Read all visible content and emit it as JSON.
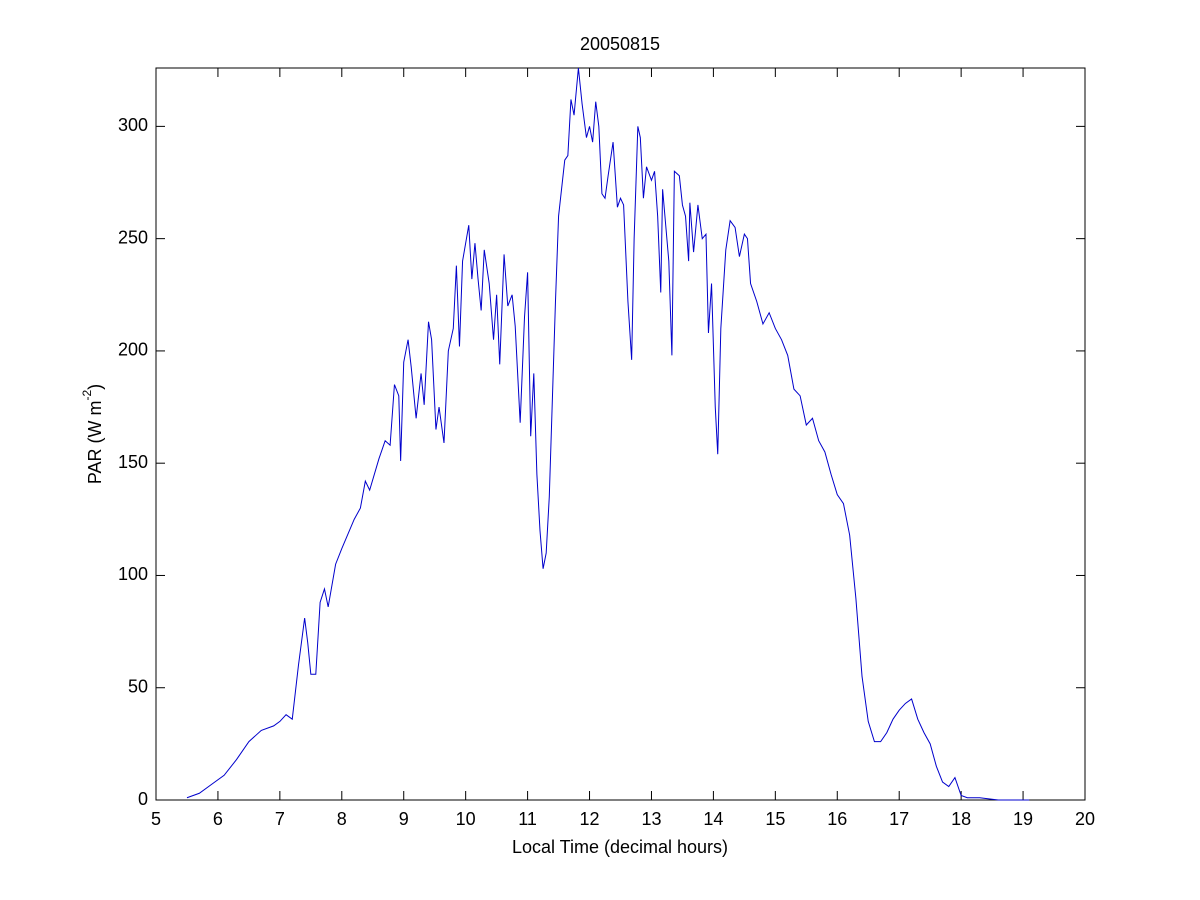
{
  "chart_data": {
    "type": "line",
    "title": "20050815",
    "xlabel": "Local Time (decimal hours)",
    "ylabel": {
      "text": "PAR (W m",
      "superscript": "-2",
      "suffix": ")"
    },
    "xlim": [
      5,
      20
    ],
    "xticks": [
      5,
      6,
      7,
      8,
      9,
      10,
      11,
      12,
      13,
      14,
      15,
      16,
      17,
      18,
      19,
      20
    ],
    "ylim": [
      0,
      326
    ],
    "yticks": [
      0,
      50,
      100,
      150,
      200,
      250,
      300
    ],
    "grid": false,
    "series": [
      {
        "color": "#0000cc",
        "x": [
          5.5,
          5.7,
          5.9,
          6.1,
          6.3,
          6.5,
          6.7,
          6.9,
          7.0,
          7.1,
          7.2,
          7.3,
          7.4,
          7.45,
          7.5,
          7.58,
          7.65,
          7.72,
          7.78,
          7.9,
          8.0,
          8.2,
          8.3,
          8.38,
          8.45,
          8.6,
          8.7,
          8.78,
          8.85,
          8.92,
          8.95,
          9.0,
          9.07,
          9.12,
          9.2,
          9.28,
          9.33,
          9.4,
          9.45,
          9.52,
          9.57,
          9.65,
          9.72,
          9.8,
          9.85,
          9.9,
          9.95,
          10.05,
          10.1,
          10.15,
          10.2,
          10.25,
          10.3,
          10.38,
          10.45,
          10.5,
          10.55,
          10.62,
          10.68,
          10.75,
          10.8,
          10.88,
          10.95,
          11.0,
          11.05,
          11.1,
          11.15,
          11.2,
          11.25,
          11.3,
          11.35,
          11.45,
          11.5,
          11.6,
          11.65,
          11.7,
          11.75,
          11.82,
          11.88,
          11.95,
          12.0,
          12.05,
          12.1,
          12.15,
          12.2,
          12.25,
          12.3,
          12.38,
          12.45,
          12.5,
          12.55,
          12.62,
          12.68,
          12.72,
          12.78,
          12.82,
          12.87,
          12.92,
          13.0,
          13.05,
          13.1,
          13.15,
          13.18,
          13.28,
          13.33,
          13.37,
          13.45,
          13.5,
          13.55,
          13.6,
          13.62,
          13.68,
          13.75,
          13.82,
          13.88,
          13.92,
          13.97,
          14.03,
          14.07,
          14.12,
          14.2,
          14.27,
          14.35,
          14.42,
          14.5,
          14.55,
          14.6,
          14.7,
          14.8,
          14.9,
          15.0,
          15.1,
          15.2,
          15.3,
          15.4,
          15.5,
          15.6,
          15.7,
          15.8,
          15.9,
          16.0,
          16.1,
          16.2,
          16.3,
          16.4,
          16.5,
          16.6,
          16.7,
          16.8,
          16.9,
          17.0,
          17.1,
          17.2,
          17.3,
          17.4,
          17.5,
          17.6,
          17.7,
          17.8,
          17.9,
          18.0,
          18.1,
          18.3,
          18.6,
          19.0,
          19.1
        ],
        "values": [
          1,
          3,
          7,
          11,
          18,
          26,
          31,
          33,
          35,
          38,
          36,
          60,
          81,
          70,
          56,
          56,
          88,
          94,
          86,
          105,
          112,
          125,
          130,
          142,
          138,
          152,
          160,
          158,
          185,
          180,
          151,
          195,
          205,
          193,
          170,
          190,
          176,
          213,
          205,
          165,
          175,
          159,
          200,
          210,
          238,
          202,
          240,
          256,
          232,
          248,
          232,
          218,
          245,
          230,
          205,
          225,
          194,
          243,
          220,
          225,
          211,
          168,
          215,
          235,
          162,
          190,
          145,
          120,
          103,
          110,
          135,
          222,
          260,
          285,
          287,
          312,
          305,
          326,
          310,
          295,
          300,
          293,
          311,
          300,
          270,
          268,
          278,
          293,
          264,
          268,
          265,
          222,
          196,
          250,
          300,
          295,
          268,
          282,
          276,
          280,
          260,
          226,
          272,
          240,
          198,
          280,
          278,
          265,
          260,
          240,
          266,
          244,
          265,
          250,
          252,
          208,
          230,
          175,
          154,
          210,
          245,
          258,
          255,
          242,
          252,
          250,
          230,
          222,
          212,
          217,
          210,
          205,
          198,
          183,
          180,
          167,
          170,
          160,
          155,
          145,
          136,
          132,
          118,
          90,
          55,
          35,
          26,
          26,
          30,
          36,
          40,
          43,
          45,
          36,
          30,
          25,
          15,
          8,
          6,
          10,
          2,
          1,
          1,
          0,
          0,
          0
        ]
      }
    ]
  }
}
